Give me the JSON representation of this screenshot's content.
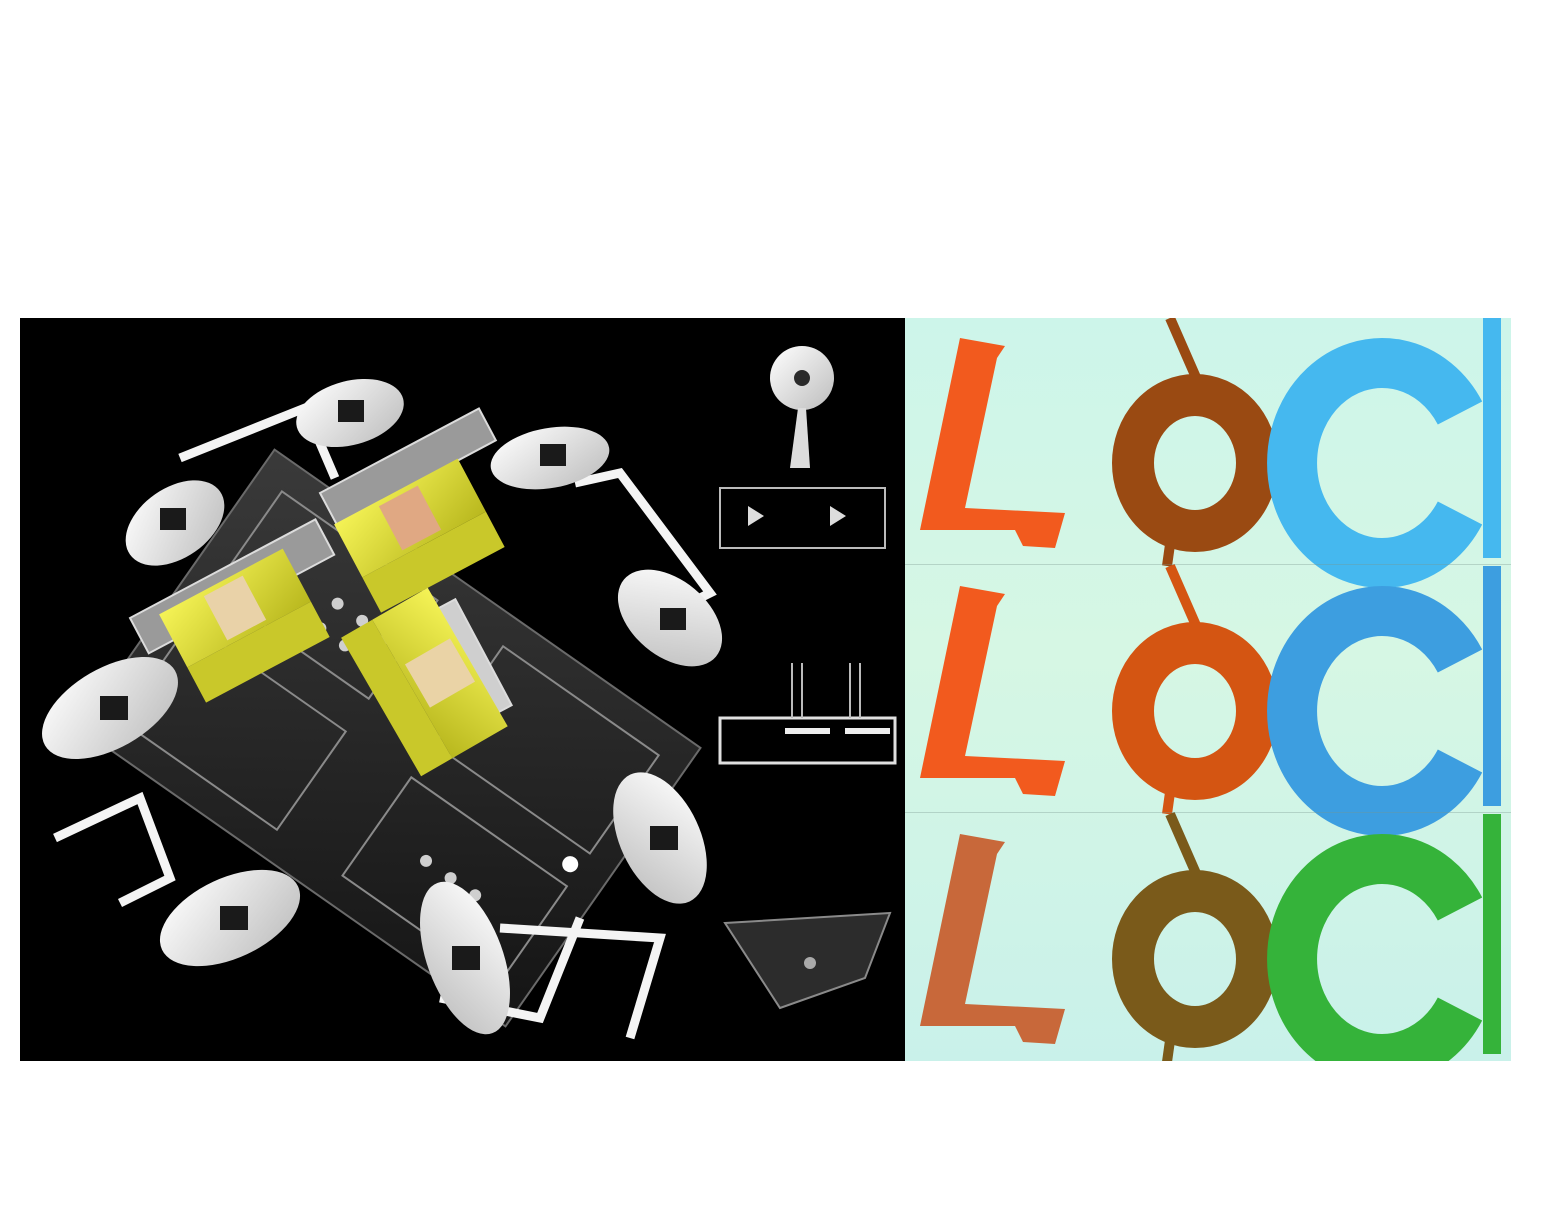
{
  "figure": {
    "left_panel": {
      "description_icon": "lab-on-chip-device-render",
      "colors": {
        "background": "#000000",
        "body": "#f2f2f2",
        "accent": "#e8e632",
        "electrode": "#e8c9a0"
      }
    },
    "right_panel": {
      "rows": [
        {
          "letters": [
            "L",
            "O",
            "C"
          ],
          "colors": [
            "#f25a1e",
            "#9a4a12",
            "#45b8ef"
          ]
        },
        {
          "letters": [
            "L",
            "O",
            "C"
          ],
          "colors": [
            "#f25a1e",
            "#d45512",
            "#3d9ee0"
          ]
        },
        {
          "letters": [
            "L",
            "O",
            "C"
          ],
          "colors": [
            "#c8683a",
            "#7a5a1a",
            "#35b33a"
          ]
        }
      ],
      "background": "#d4f6e6"
    }
  }
}
